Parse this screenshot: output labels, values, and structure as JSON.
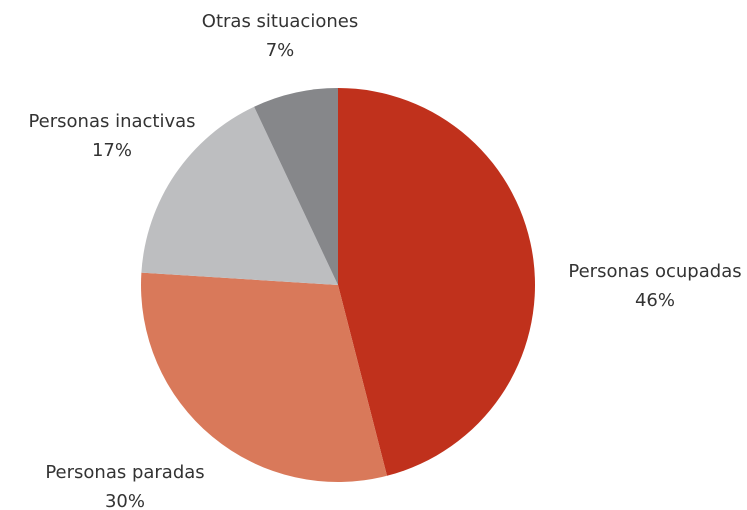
{
  "chart_data": {
    "type": "pie",
    "categories": [
      "Personas ocupadas",
      "Personas paradas",
      "Personas inactivas",
      "Otras situaciones"
    ],
    "values": [
      46,
      30,
      17,
      7
    ],
    "value_labels": [
      "46%",
      "30%",
      "17%",
      "7%"
    ],
    "colors": [
      "#c0311c",
      "#d9795a",
      "#bdbec0",
      "#86878a"
    ]
  }
}
